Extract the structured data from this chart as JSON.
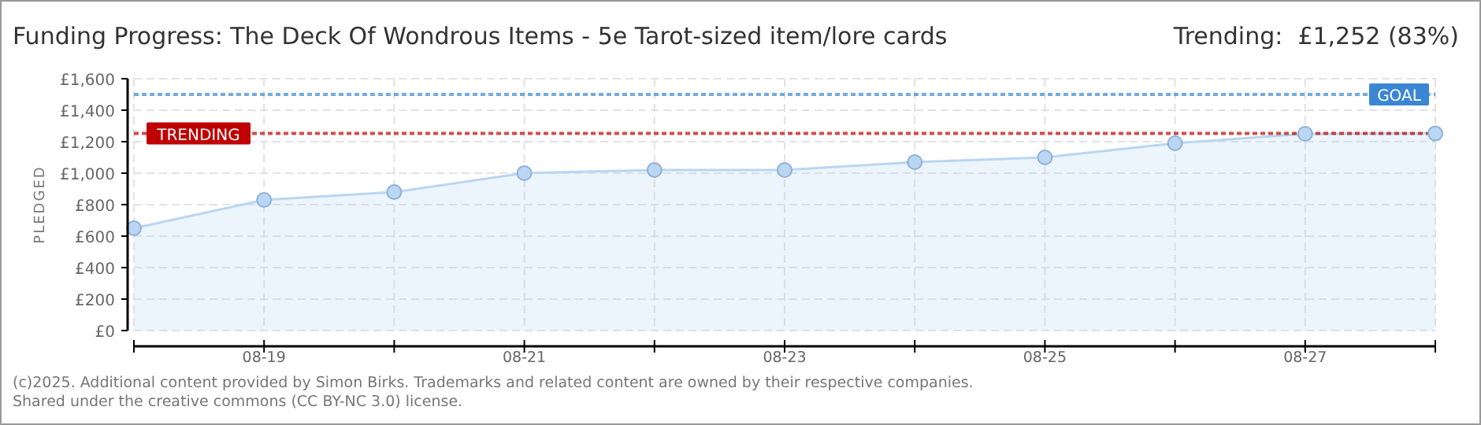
{
  "chart_data": {
    "type": "area",
    "title": "Funding Progress: The Deck Of Wondrous Items - 5e Tarot-sized item/lore cards",
    "subtitle": "Trending:  £1,252 (83%)",
    "ylabel": "PLEDGED",
    "x": [
      "--08-18",
      "--08-19",
      "--08-20",
      "--08-21",
      "--08-22",
      "--08-23",
      "--08-24",
      "--08-25",
      "--08-26",
      "--08-27",
      "--08-28"
    ],
    "series": [
      {
        "color": "#b9d6f2",
        "values": [
          650,
          830,
          880,
          1000,
          1020,
          1020,
          1070,
          1100,
          1190,
          1250,
          1252
        ]
      }
    ],
    "xlim": [
      "--08-18",
      "--08-28"
    ],
    "xticks": [
      {
        "value": "--08-18",
        "label": null
      },
      {
        "value": "--08-19",
        "label": "08-19"
      },
      {
        "value": "--08-20",
        "label": null
      },
      {
        "value": "--08-21",
        "label": "08-21"
      },
      {
        "value": "--08-22",
        "label": null
      },
      {
        "value": "--08-23",
        "label": "08-23"
      },
      {
        "value": "--08-24",
        "label": null
      },
      {
        "value": "--08-25",
        "label": "08-25"
      },
      {
        "value": "--08-26",
        "label": null
      },
      {
        "value": "--08-27",
        "label": "08-27"
      },
      {
        "value": "--08-28",
        "label": null
      }
    ],
    "ylim": [
      0,
      1600
    ],
    "yticks": [
      {
        "value": 0,
        "label": "£0"
      },
      {
        "value": 200,
        "label": "£200"
      },
      {
        "value": 400,
        "label": "£400"
      },
      {
        "value": 600,
        "label": "£600"
      },
      {
        "value": 800,
        "label": "£800"
      },
      {
        "value": 1000,
        "label": "£1,000"
      },
      {
        "value": 1200,
        "label": "£1,200"
      },
      {
        "value": 1400,
        "label": "£1,400"
      },
      {
        "value": 1600,
        "label": "£1,600"
      }
    ],
    "grid": true,
    "marker": "circle",
    "ref_lines": [
      {
        "axis": "y",
        "value": 1500,
        "label": "GOAL",
        "color": "#3a86d4",
        "line_style": "dotted"
      },
      {
        "axis": "y",
        "value": 1252,
        "label": "TRENDING",
        "color": "#c00000",
        "line_style": "dotted"
      }
    ],
    "annotations": [
      "(c)2025. Additional content provided by Simon Birks. Trademarks and related content are owned by their respective companies.",
      "Shared under the creative commons (CC BY-NC 3.0) license."
    ]
  }
}
